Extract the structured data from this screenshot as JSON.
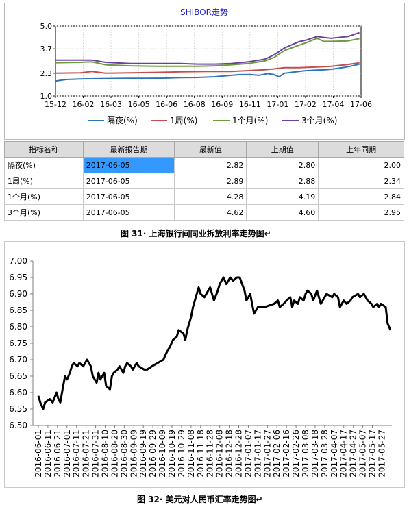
{
  "top_chart": {
    "title": "SHIBOR走势",
    "legend": [
      "隔夜(%)",
      "1周(%)",
      "1个月(%)",
      "3个月(%)"
    ],
    "colors": [
      "#2e75b6",
      "#c0504d",
      "#6d9a3d",
      "#6b3fa0"
    ]
  },
  "table": {
    "headers": [
      "指标名称",
      "最新报告期",
      "最新值",
      "上期值",
      "上年同期"
    ],
    "rows": [
      [
        "隔夜(%)",
        "2017-06-05",
        "2.82",
        "2.80",
        "2.00"
      ],
      [
        "1周(%)",
        "2017-06-05",
        "2.89",
        "2.88",
        "2.34"
      ],
      [
        "1个月(%)",
        "2017-06-05",
        "4.28",
        "4.19",
        "2.84"
      ],
      [
        "3个月(%)",
        "2017-06-05",
        "4.62",
        "4.60",
        "2.95"
      ]
    ]
  },
  "captions": {
    "fig31": "图 31· 上海银行间同业拆放利率走势图↵",
    "fig32": "图 32· 美元对人民币汇率走势图↵"
  },
  "chart_data": [
    {
      "type": "line",
      "title": "SHIBOR走势",
      "x_ticks": [
        "15-12",
        "16-02",
        "16-03",
        "16-05",
        "16-06",
        "16-08",
        "16-09",
        "16-11",
        "17-01",
        "17-02",
        "17-04",
        "17-06"
      ],
      "ylim": [
        1.0,
        5.0
      ],
      "y_ticks": [
        "1.0",
        "2.3",
        "3.7",
        "5.0"
      ],
      "grid": true,
      "legend_position": "bottom",
      "series": [
        {
          "name": "隔夜(%)",
          "color": "#2e75b6",
          "x": [
            "2015-12-01",
            "2015-12-20",
            "2016-01-15",
            "2016-02-01",
            "2016-02-20",
            "2016-03-15",
            "2016-04-15",
            "2016-05-15",
            "2016-06-15",
            "2016-07-15",
            "2016-08-15",
            "2016-09-15",
            "2016-10-15",
            "2016-11-01",
            "2016-11-20",
            "2016-12-05",
            "2016-12-20",
            "2017-01-01",
            "2017-01-10",
            "2017-01-20",
            "2017-02-01",
            "2017-02-15",
            "2017-03-01",
            "2017-03-20",
            "2017-04-05",
            "2017-04-20",
            "2017-05-05",
            "2017-05-20",
            "2017-06-05"
          ],
          "values": [
            1.85,
            1.94,
            1.97,
            1.98,
            1.99,
            2.0,
            2.01,
            2.01,
            2.02,
            2.05,
            2.06,
            2.1,
            2.18,
            2.22,
            2.22,
            2.18,
            2.28,
            2.22,
            2.1,
            2.3,
            2.35,
            2.4,
            2.45,
            2.48,
            2.5,
            2.55,
            2.62,
            2.7,
            2.82
          ]
        },
        {
          "name": "1周(%)",
          "color": "#c0504d",
          "x": [
            "2015-12-01",
            "2016-01-15",
            "2016-02-05",
            "2016-03-01",
            "2016-04-15",
            "2016-06-01",
            "2016-07-15",
            "2016-09-01",
            "2016-10-15",
            "2016-11-15",
            "2016-12-15",
            "2017-01-01",
            "2017-01-20",
            "2017-02-15",
            "2017-03-15",
            "2017-04-15",
            "2017-05-15",
            "2017-06-05"
          ],
          "values": [
            2.3,
            2.32,
            2.4,
            2.3,
            2.32,
            2.35,
            2.38,
            2.4,
            2.4,
            2.45,
            2.5,
            2.55,
            2.62,
            2.62,
            2.65,
            2.7,
            2.8,
            2.89
          ]
        },
        {
          "name": "1个月(%)",
          "color": "#6d9a3d",
          "x": [
            "2015-12-01",
            "2016-01-15",
            "2016-02-05",
            "2016-03-01",
            "2016-04-15",
            "2016-06-01",
            "2016-07-15",
            "2016-08-15",
            "2016-09-15",
            "2016-10-15",
            "2016-11-15",
            "2016-12-15",
            "2017-01-01",
            "2017-01-20",
            "2017-02-15",
            "2017-03-01",
            "2017-03-20",
            "2017-04-01",
            "2017-04-15",
            "2017-05-15",
            "2017-06-05"
          ],
          "values": [
            2.9,
            2.92,
            2.95,
            2.78,
            2.72,
            2.7,
            2.7,
            2.7,
            2.72,
            2.78,
            2.85,
            3.0,
            3.2,
            3.6,
            3.9,
            4.05,
            4.3,
            4.12,
            4.12,
            4.15,
            4.28
          ]
        },
        {
          "name": "3个月(%)",
          "color": "#6b3fa0",
          "x": [
            "2015-12-01",
            "2016-01-15",
            "2016-02-05",
            "2016-03-01",
            "2016-04-15",
            "2016-06-01",
            "2016-07-15",
            "2016-08-15",
            "2016-09-15",
            "2016-10-15",
            "2016-11-15",
            "2016-12-15",
            "2017-01-01",
            "2017-01-20",
            "2017-02-15",
            "2017-03-01",
            "2017-03-20",
            "2017-04-01",
            "2017-04-15",
            "2017-05-15",
            "2017-06-05"
          ],
          "values": [
            3.05,
            3.05,
            3.05,
            2.92,
            2.85,
            2.85,
            2.85,
            2.82,
            2.82,
            2.85,
            2.95,
            3.1,
            3.35,
            3.75,
            4.1,
            4.2,
            4.4,
            4.35,
            4.3,
            4.4,
            4.62
          ]
        }
      ]
    },
    {
      "type": "line",
      "title": "",
      "ylim": [
        6.5,
        7.0
      ],
      "y_ticks": [
        "6.50",
        "6.55",
        "6.60",
        "6.65",
        "6.70",
        "6.75",
        "6.80",
        "6.85",
        "6.90",
        "6.95",
        "7.00"
      ],
      "x_ticks": [
        "2016-06-01",
        "2016-06-11",
        "2016-06-21",
        "2016-07-01",
        "2016-07-11",
        "2016-07-21",
        "2016-07-31",
        "2016-08-10",
        "2016-08-20",
        "2016-08-30",
        "2016-09-09",
        "2016-09-19",
        "2016-09-29",
        "2016-10-09",
        "2016-10-19",
        "2016-10-29",
        "2016-11-08",
        "2016-11-18",
        "2016-11-28",
        "2016-12-08",
        "2016-12-18",
        "2016-12-28",
        "2017-01-07",
        "2017-01-17",
        "2017-01-27",
        "2017-02-06",
        "2017-02-16",
        "2017-02-26",
        "2017-03-08",
        "2017-03-18",
        "2017-03-28",
        "2017-04-07",
        "2017-04-17",
        "2017-04-27",
        "2017-05-07",
        "2017-05-17",
        "2017-05-27"
      ],
      "grid": false,
      "series": [
        {
          "name": "",
          "color": "#000000",
          "x": [
            "2016-06-01",
            "2016-06-03",
            "2016-06-06",
            "2016-06-08",
            "2016-06-13",
            "2016-06-16",
            "2016-06-20",
            "2016-06-22",
            "2016-06-24",
            "2016-06-27",
            "2016-06-29",
            "2016-07-01",
            "2016-07-04",
            "2016-07-06",
            "2016-07-08",
            "2016-07-12",
            "2016-07-14",
            "2016-07-18",
            "2016-07-20",
            "2016-07-22",
            "2016-07-26",
            "2016-07-28",
            "2016-08-01",
            "2016-08-03",
            "2016-08-05",
            "2016-08-09",
            "2016-08-11",
            "2016-08-15",
            "2016-08-17",
            "2016-08-19",
            "2016-08-23",
            "2016-08-25",
            "2016-08-29",
            "2016-08-31",
            "2016-09-02",
            "2016-09-06",
            "2016-09-08",
            "2016-09-12",
            "2016-09-14",
            "2016-09-20",
            "2016-09-23",
            "2016-09-28",
            "2016-10-10",
            "2016-10-13",
            "2016-10-17",
            "2016-10-20",
            "2016-10-24",
            "2016-10-26",
            "2016-10-31",
            "2016-11-02",
            "2016-11-04",
            "2016-11-08",
            "2016-11-10",
            "2016-11-14",
            "2016-11-16",
            "2016-11-18",
            "2016-11-22",
            "2016-11-24",
            "2016-11-28",
            "2016-11-30",
            "2016-12-02",
            "2016-12-06",
            "2016-12-08",
            "2016-12-12",
            "2016-12-15",
            "2016-12-19",
            "2016-12-22",
            "2016-12-26",
            "2016-12-29",
            "2017-01-03",
            "2017-01-05",
            "2017-01-09",
            "2017-01-11",
            "2017-01-13",
            "2017-01-17",
            "2017-01-20",
            "2017-01-24",
            "2017-02-03",
            "2017-02-07",
            "2017-02-09",
            "2017-02-13",
            "2017-02-16",
            "2017-02-20",
            "2017-02-22",
            "2017-02-24",
            "2017-02-28",
            "2017-03-02",
            "2017-03-06",
            "2017-03-08",
            "2017-03-10",
            "2017-03-14",
            "2017-03-16",
            "2017-03-20",
            "2017-03-22",
            "2017-03-24",
            "2017-03-28",
            "2017-03-30",
            "2017-04-05",
            "2017-04-07",
            "2017-04-11",
            "2017-04-13",
            "2017-04-17",
            "2017-04-20",
            "2017-04-24",
            "2017-04-26",
            "2017-05-02",
            "2017-05-04",
            "2017-05-08",
            "2017-05-10",
            "2017-05-12",
            "2017-05-16",
            "2017-05-18",
            "2017-05-22",
            "2017-05-24",
            "2017-05-26",
            "2017-05-31",
            "2017-06-02",
            "2017-06-05"
          ],
          "values": [
            6.59,
            6.57,
            6.55,
            6.57,
            6.58,
            6.57,
            6.6,
            6.58,
            6.57,
            6.62,
            6.65,
            6.64,
            6.66,
            6.68,
            6.69,
            6.68,
            6.69,
            6.68,
            6.69,
            6.7,
            6.68,
            6.65,
            6.63,
            6.66,
            6.64,
            6.66,
            6.62,
            6.61,
            6.65,
            6.66,
            6.67,
            6.68,
            6.66,
            6.68,
            6.69,
            6.68,
            6.67,
            6.69,
            6.68,
            6.67,
            6.67,
            6.68,
            6.7,
            6.72,
            6.74,
            6.76,
            6.77,
            6.79,
            6.78,
            6.76,
            6.79,
            6.83,
            6.86,
            6.9,
            6.92,
            6.9,
            6.89,
            6.9,
            6.92,
            6.9,
            6.88,
            6.91,
            6.93,
            6.95,
            6.93,
            6.95,
            6.94,
            6.95,
            6.95,
            6.91,
            6.88,
            6.9,
            6.87,
            6.84,
            6.86,
            6.86,
            6.86,
            6.87,
            6.88,
            6.86,
            6.87,
            6.88,
            6.89,
            6.86,
            6.88,
            6.87,
            6.89,
            6.88,
            6.9,
            6.91,
            6.9,
            6.88,
            6.91,
            6.89,
            6.87,
            6.89,
            6.9,
            6.89,
            6.9,
            6.89,
            6.86,
            6.88,
            6.87,
            6.88,
            6.89,
            6.9,
            6.89,
            6.9,
            6.89,
            6.88,
            6.87,
            6.86,
            6.87,
            6.86,
            6.87,
            6.86,
            6.81,
            6.79
          ]
        }
      ]
    }
  ]
}
